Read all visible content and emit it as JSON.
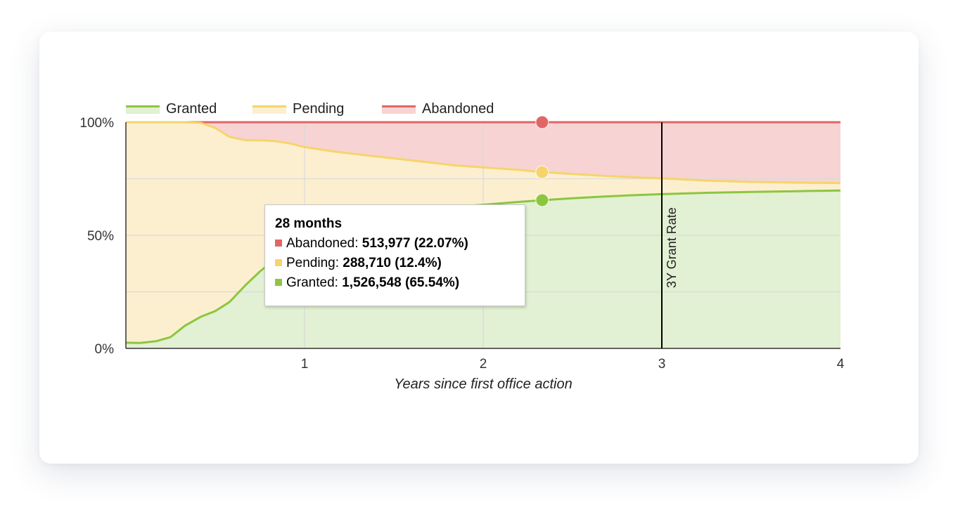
{
  "colors": {
    "granted_line": "#8cc63f",
    "granted_fill": "#e2f0d3",
    "pending_line": "#f6d46b",
    "pending_fill": "#fcefd0",
    "abandoned_line": "#e06666",
    "abandoned_fill": "#f7d3d3",
    "grid": "#d9d9d9",
    "axis": "#333333",
    "marker_line": "#000000"
  },
  "chart_data": {
    "type": "area",
    "title": "",
    "xlabel": "Years since first office action",
    "ylabel": "",
    "xlim": [
      0,
      4
    ],
    "ylim": [
      0,
      100
    ],
    "x_ticks": [
      "1",
      "2",
      "3",
      "4"
    ],
    "y_ticks": [
      "0%",
      "50%",
      "100%"
    ],
    "legend_position": "top-left",
    "legend": [
      "Granted",
      "Pending",
      "Abandoned"
    ],
    "grid": true,
    "stacked": true,
    "x": [
      0,
      0.08,
      0.17,
      0.25,
      0.33,
      0.42,
      0.5,
      0.58,
      0.67,
      0.75,
      0.83,
      0.92,
      1.0,
      1.17,
      1.33,
      1.5,
      1.67,
      1.83,
      2.0,
      2.17,
      2.33,
      2.5,
      2.67,
      2.83,
      3.0,
      3.25,
      3.5,
      3.75,
      4.0
    ],
    "series": [
      {
        "name": "Granted",
        "values": [
          2.5,
          2.4,
          3.2,
          5.0,
          10.0,
          14.0,
          16.5,
          20.5,
          28.0,
          34.0,
          39.0,
          43.0,
          46.5,
          52.0,
          56.5,
          59.0,
          61.0,
          62.5,
          63.5,
          64.6,
          65.54,
          66.4,
          67.1,
          67.7,
          68.2,
          68.8,
          69.2,
          69.5,
          69.8
        ]
      },
      {
        "name": "Pending",
        "values": [
          97.5,
          97.6,
          96.8,
          95.0,
          90.0,
          85.7,
          81.0,
          73.0,
          64.0,
          58.0,
          52.7,
          47.6,
          42.5,
          35.0,
          29.0,
          25.0,
          21.5,
          18.5,
          16.5,
          14.5,
          12.4,
          10.7,
          9.2,
          8.0,
          7.0,
          5.4,
          4.4,
          3.8,
          3.3
        ]
      },
      {
        "name": "Abandoned",
        "values": [
          0,
          0,
          0,
          0,
          0,
          0.3,
          2.5,
          6.5,
          8.0,
          8.0,
          8.3,
          9.4,
          11.0,
          13.0,
          14.5,
          16.0,
          17.5,
          19.0,
          20.0,
          20.9,
          22.07,
          22.9,
          23.7,
          24.3,
          24.8,
          25.8,
          26.4,
          26.7,
          26.9
        ]
      }
    ],
    "vertical_marker": {
      "x": 3,
      "label": "3Y Grant Rate"
    },
    "hover": {
      "x": 2.33,
      "title": "28 months",
      "rows": [
        {
          "series": "Abandoned",
          "label": "Abandoned: ",
          "value": "513,977 (22.07%)"
        },
        {
          "series": "Pending",
          "label": "Pending: ",
          "value": "288,710 (12.4%)"
        },
        {
          "series": "Granted",
          "label": "Granted: ",
          "value": "1,526,548 (65.54%)"
        }
      ]
    }
  }
}
